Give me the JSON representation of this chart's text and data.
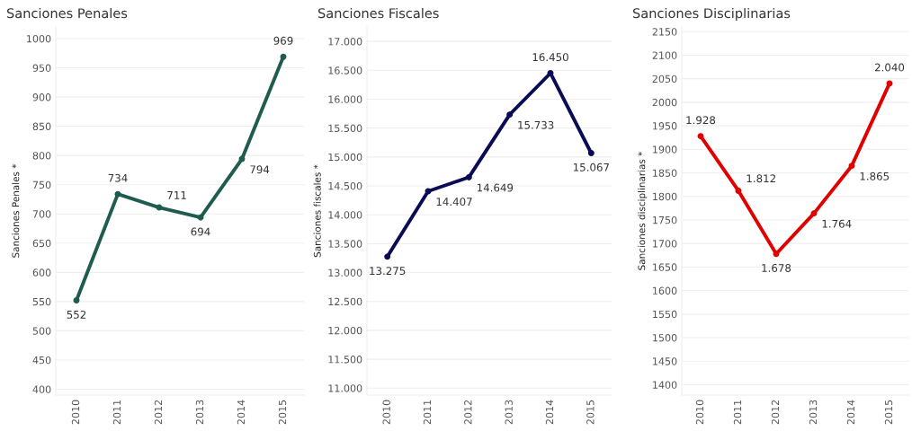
{
  "chart_data": [
    {
      "type": "line",
      "title": "Sanciones Penales",
      "ylabel": "Sanciones Penales *",
      "categories": [
        "2010",
        "2011",
        "2012",
        "2013",
        "2014",
        "2015"
      ],
      "series": [
        {
          "color": "#1f5c4f",
          "values": [
            552,
            734,
            711,
            694,
            794,
            969
          ],
          "value_labels": [
            "552",
            "734",
            "711",
            "694",
            "794",
            "969"
          ]
        }
      ],
      "ylim": [
        390,
        1020
      ],
      "yticks": [
        400,
        450,
        500,
        550,
        600,
        650,
        700,
        750,
        800,
        850,
        900,
        950,
        1000
      ],
      "grid": "y",
      "marker": "circle",
      "line_style": "solid"
    },
    {
      "type": "line",
      "title": "Sanciones Fiscales",
      "ylabel": "Sanciones fiscales *",
      "categories": [
        "2010",
        "2011",
        "2012",
        "2013",
        "2014",
        "2015"
      ],
      "series": [
        {
          "color": "#0b0b55",
          "values": [
            13275,
            14407,
            14649,
            15733,
            16450,
            15067
          ],
          "value_labels": [
            "13.275",
            "14.407",
            "14.649",
            "15.733",
            "16.450",
            "15.067"
          ]
        }
      ],
      "ylim": [
        10880,
        17250
      ],
      "yticks": [
        {
          "value": 11000,
          "label": "11.000"
        },
        {
          "value": 11500,
          "label": "11.500"
        },
        {
          "value": 12000,
          "label": "12.000"
        },
        {
          "value": 12500,
          "label": "12.500"
        },
        {
          "value": 13000,
          "label": "13.000"
        },
        {
          "value": 13500,
          "label": "13.500"
        },
        {
          "value": 14000,
          "label": "14.000"
        },
        {
          "value": 14500,
          "label": "14.500"
        },
        {
          "value": 15000,
          "label": "15.000"
        },
        {
          "value": 15500,
          "label": "15.500"
        },
        {
          "value": 16000,
          "label": "16.000"
        },
        {
          "value": 16500,
          "label": "16.500"
        },
        {
          "value": 17000,
          "label": "17.000"
        }
      ],
      "grid": "y",
      "marker": "circle",
      "line_style": "solid"
    },
    {
      "type": "line",
      "title": "Sanciones Disciplinarias",
      "ylabel": "Sanciones disciplinarias *",
      "categories": [
        "2010",
        "2011",
        "2012",
        "2013",
        "2014",
        "2015"
      ],
      "series": [
        {
          "color": "#e00000",
          "values": [
            1928,
            1812,
            1678,
            1764,
            1865,
            2040
          ],
          "value_labels": [
            "1.928",
            "1.812",
            "1.678",
            "1.764",
            "1.865",
            "2.040"
          ]
        }
      ],
      "ylim": [
        1378,
        2160
      ],
      "yticks": [
        1400,
        1450,
        1500,
        1550,
        1600,
        1650,
        1700,
        1750,
        1800,
        1850,
        1900,
        1950,
        2000,
        2050,
        2100,
        2150
      ],
      "grid": "y",
      "marker": "circle",
      "line_style": "solid"
    }
  ]
}
